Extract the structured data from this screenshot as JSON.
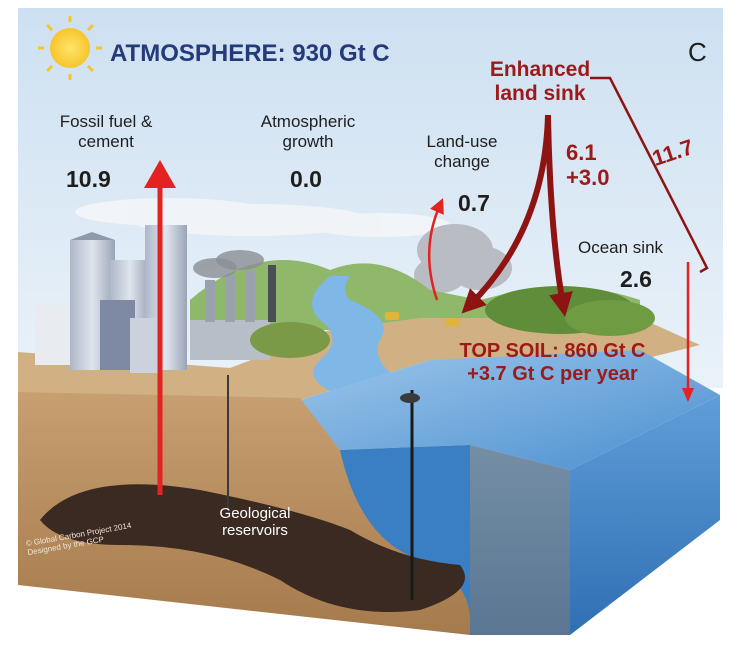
{
  "panel_letter": "C",
  "atmosphere": {
    "label": "ATMOSPHERE: 930 Gt C"
  },
  "fossil_fuel": {
    "label_line1": "Fossil fuel &",
    "label_line2": "cement",
    "value": "10.9"
  },
  "atmospheric_growth": {
    "label_line1": "Atmospheric",
    "label_line2": "growth",
    "value": "0.0"
  },
  "land_use_change": {
    "label_line1": "Land-use",
    "label_line2": "change",
    "value": "0.7"
  },
  "enhanced_land_sink": {
    "label_line1": "Enhanced",
    "label_line2": "land sink",
    "value_line1": "6.1",
    "value_line2": "+3.0"
  },
  "bracket_total": {
    "value": "11.7"
  },
  "ocean_sink": {
    "label": "Ocean sink",
    "value": "2.6"
  },
  "top_soil": {
    "label_line1": "TOP SOIL: 860 Gt C",
    "label_line2": "+3.7 Gt C per year"
  },
  "geological": {
    "label_line1": "Geological",
    "label_line2": "reservoirs"
  },
  "credit": {
    "line1": "© Global Carbon Project 2014",
    "line2": "Designed by the GCP"
  },
  "colors": {
    "sky_top": "#cfe1f1",
    "sky_bottom": "#e6f0f8",
    "ground": "#c9a77b",
    "soil": "#b08356",
    "water": "#6fa9dc",
    "water_dark": "#3f7fc0",
    "arrow_red": "#e32222",
    "dark_red": "#8e1414",
    "title_blue": "#253a78"
  }
}
